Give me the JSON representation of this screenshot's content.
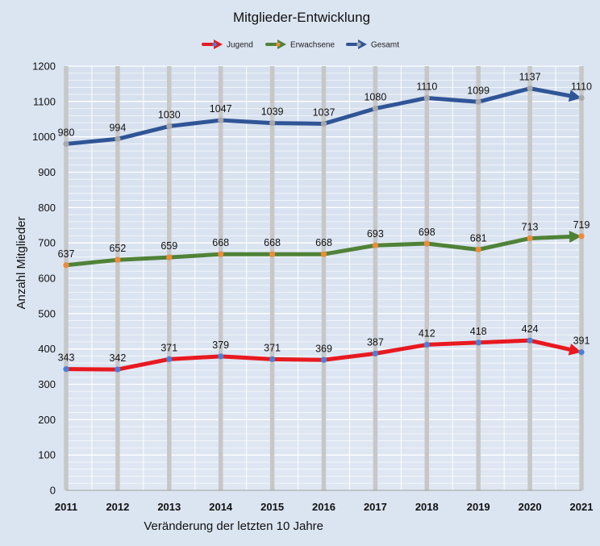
{
  "chart_data": {
    "type": "line",
    "title": "Mitglieder-Entwicklung",
    "xlabel": "Veränderung der letzten 10 Jahre",
    "ylabel": "Anzahl Mitglieder",
    "ylim": [
      0,
      1200
    ],
    "yticks": [
      "0",
      "100",
      "200",
      "300",
      "400",
      "500",
      "600",
      "700",
      "800",
      "900",
      "1000",
      "1100",
      "1200"
    ],
    "x": [
      "2011",
      "2012",
      "2013",
      "2014",
      "2015",
      "2016",
      "2017",
      "2018",
      "2019",
      "2020",
      "2021"
    ],
    "legend_position": "top",
    "grid": true,
    "series": [
      {
        "key": "jugend",
        "name": "Jugend",
        "color": "#e8191f",
        "marker_color": "#4a7fd6",
        "values": [
          343,
          342,
          371,
          379,
          371,
          369,
          387,
          412,
          418,
          424,
          391
        ],
        "labels": [
          "343",
          "342",
          "371",
          "379",
          "371",
          "369",
          "387",
          "412",
          "418",
          "424",
          "391"
        ]
      },
      {
        "key": "erwachsene",
        "name": "Erwachsene",
        "color": "#4f8237",
        "marker_color": "#ef8a3a",
        "values": [
          637,
          652,
          659,
          668,
          668,
          668,
          693,
          698,
          681,
          713,
          719
        ],
        "labels": [
          "637",
          "652",
          "659",
          "668",
          "668",
          "668",
          "693",
          "698",
          "681",
          "713",
          "719"
        ]
      },
      {
        "key": "gesamt",
        "name": "Gesamt",
        "color": "#2f5597",
        "marker_color": "#a8a8a8",
        "values": [
          980,
          994,
          1030,
          1047,
          1039,
          1037,
          1080,
          1110,
          1099,
          1137,
          1110
        ],
        "labels": [
          "980",
          "994",
          "1030",
          "1047",
          "1039",
          "1037",
          "1080",
          "1110",
          "1099",
          "1137",
          "1110"
        ]
      }
    ]
  }
}
